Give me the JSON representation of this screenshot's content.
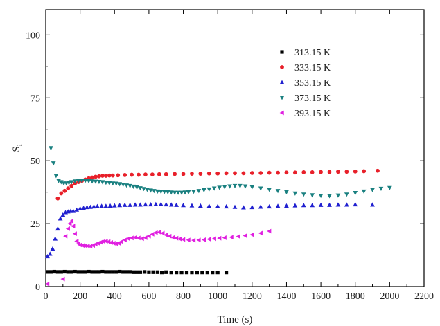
{
  "chart_data": {
    "type": "scatter",
    "title": "",
    "xlabel": "Time (s)",
    "ylabel": "S",
    "ylabel_subscript": "i",
    "xlim": [
      0,
      2200
    ],
    "ylim": [
      0,
      110
    ],
    "xticks": [
      0,
      200,
      400,
      600,
      800,
      1000,
      1200,
      1400,
      1600,
      1800,
      2000,
      2200
    ],
    "yticks": [
      0,
      25,
      50,
      75,
      100
    ],
    "grid": false,
    "legend_position": "top-right",
    "series": [
      {
        "name": "313.15 K",
        "marker": "square",
        "color": "#000000",
        "x": [
          10,
          30,
          50,
          70,
          90,
          110,
          130,
          150,
          170,
          190,
          210,
          230,
          250,
          270,
          290,
          310,
          330,
          350,
          370,
          390,
          410,
          430,
          450,
          470,
          490,
          510,
          530,
          550,
          575,
          600,
          625,
          650,
          675,
          700,
          730,
          760,
          790,
          820,
          850,
          880,
          910,
          940,
          970,
          1000,
          1050
        ],
        "y": [
          5.8,
          5.8,
          5.9,
          5.8,
          5.8,
          5.9,
          5.8,
          5.8,
          5.9,
          5.8,
          5.8,
          5.8,
          5.9,
          5.8,
          5.8,
          5.8,
          5.9,
          5.8,
          5.8,
          5.8,
          5.8,
          5.9,
          5.8,
          5.8,
          5.8,
          5.7,
          5.7,
          5.7,
          5.8,
          5.7,
          5.7,
          5.7,
          5.6,
          5.7,
          5.6,
          5.6,
          5.6,
          5.6,
          5.6,
          5.6,
          5.6,
          5.6,
          5.6,
          5.6,
          5.6
        ]
      },
      {
        "name": "333.15 K",
        "marker": "circle",
        "color": "#e8202a",
        "x": [
          70,
          90,
          110,
          130,
          150,
          170,
          190,
          210,
          230,
          250,
          270,
          290,
          310,
          330,
          350,
          370,
          390,
          420,
          460,
          500,
          540,
          580,
          620,
          660,
          700,
          750,
          800,
          850,
          900,
          950,
          1000,
          1050,
          1100,
          1150,
          1200,
          1250,
          1300,
          1350,
          1400,
          1450,
          1500,
          1550,
          1600,
          1650,
          1700,
          1750,
          1800,
          1850,
          1930
        ],
        "y": [
          35,
          37,
          38,
          39,
          40,
          41,
          41.5,
          42,
          42.5,
          43,
          43.3,
          43.6,
          43.8,
          44,
          44,
          44.1,
          44.1,
          44.2,
          44.3,
          44.4,
          44.4,
          44.5,
          44.5,
          44.6,
          44.6,
          44.7,
          44.7,
          44.8,
          44.8,
          44.9,
          44.9,
          45,
          45,
          45,
          45.1,
          45.1,
          45.2,
          45.2,
          45.3,
          45.3,
          45.4,
          45.4,
          45.5,
          45.5,
          45.6,
          45.6,
          45.7,
          45.8,
          46
        ]
      },
      {
        "name": "353.15 K",
        "marker": "triangle-up",
        "color": "#2020d0",
        "x": [
          10,
          25,
          40,
          55,
          70,
          85,
          100,
          115,
          130,
          145,
          160,
          180,
          200,
          220,
          240,
          260,
          280,
          300,
          325,
          350,
          375,
          400,
          430,
          460,
          490,
          520,
          550,
          580,
          610,
          640,
          670,
          700,
          730,
          760,
          800,
          850,
          900,
          950,
          1000,
          1050,
          1100,
          1150,
          1200,
          1250,
          1300,
          1350,
          1400,
          1450,
          1500,
          1550,
          1600,
          1650,
          1700,
          1750,
          1800,
          1900
        ],
        "y": [
          12,
          13,
          15,
          19,
          23,
          27,
          28.5,
          29.5,
          29.8,
          30,
          30,
          30.5,
          31,
          31.2,
          31.5,
          31.6,
          31.8,
          31.9,
          32,
          32,
          32.1,
          32.2,
          32.3,
          32.4,
          32.4,
          32.5,
          32.5,
          32.6,
          32.6,
          32.7,
          32.7,
          32.6,
          32.5,
          32.4,
          32.3,
          32.2,
          32.1,
          32,
          31.9,
          31.8,
          31.6,
          31.4,
          31.5,
          31.7,
          31.8,
          32,
          32.1,
          32.2,
          32.3,
          32.3,
          32.4,
          32.4,
          32.5,
          32.5,
          32.6,
          32.5
        ]
      },
      {
        "name": "373.15 K",
        "marker": "triangle-down",
        "color": "#1a8080",
        "x": [
          30,
          45,
          60,
          75,
          90,
          105,
          120,
          135,
          150,
          170,
          190,
          210,
          230,
          250,
          270,
          290,
          310,
          330,
          350,
          370,
          390,
          410,
          430,
          450,
          470,
          490,
          510,
          530,
          550,
          570,
          590,
          610,
          630,
          650,
          670,
          690,
          710,
          730,
          750,
          770,
          790,
          810,
          830,
          860,
          890,
          920,
          950,
          980,
          1010,
          1040,
          1070,
          1100,
          1130,
          1160,
          1200,
          1250,
          1300,
          1350,
          1400,
          1450,
          1500,
          1550,
          1600,
          1650,
          1700,
          1750,
          1800,
          1850,
          1900,
          1950,
          2000
        ],
        "y": [
          55,
          49,
          44,
          42,
          41.5,
          41,
          41,
          41.2,
          41.5,
          41.8,
          42,
          42,
          42,
          41.9,
          41.8,
          41.7,
          41.6,
          41.5,
          41.3,
          41.1,
          41,
          40.9,
          40.7,
          40.5,
          40.2,
          40,
          39.7,
          39.4,
          39.1,
          38.8,
          38.5,
          38.2,
          38,
          37.8,
          37.7,
          37.6,
          37.5,
          37.4,
          37.3,
          37.3,
          37.3,
          37.4,
          37.5,
          37.7,
          38,
          38.3,
          38.6,
          39,
          39.3,
          39.6,
          39.8,
          40,
          40,
          39.8,
          39.5,
          39,
          38.5,
          38,
          37.5,
          37,
          36.6,
          36.3,
          36.1,
          36,
          36.2,
          36.6,
          37.2,
          37.8,
          38.4,
          38.9,
          39.2
        ]
      },
      {
        "name": "393.15 K",
        "marker": "triangle-left",
        "color": "#e020e0",
        "x": [
          10,
          100,
          115,
          130,
          140,
          150,
          160,
          170,
          180,
          190,
          200,
          215,
          230,
          245,
          260,
          275,
          290,
          305,
          320,
          335,
          350,
          365,
          380,
          395,
          410,
          425,
          440,
          460,
          480,
          500,
          520,
          540,
          560,
          580,
          600,
          620,
          640,
          660,
          680,
          700,
          720,
          740,
          760,
          780,
          800,
          830,
          860,
          890,
          920,
          950,
          980,
          1010,
          1040,
          1080,
          1120,
          1160,
          1200,
          1250,
          1300
        ],
        "y": [
          1,
          3,
          20,
          23,
          25,
          26,
          24,
          21,
          18,
          17,
          16.5,
          16.3,
          16.2,
          16.1,
          16,
          16.3,
          16.8,
          17.2,
          17.6,
          17.9,
          18,
          17.8,
          17.5,
          17.2,
          17,
          17.2,
          17.8,
          18.5,
          19,
          19.3,
          19.5,
          19.3,
          19,
          19.4,
          20,
          20.8,
          21.4,
          21.6,
          21.2,
          20.5,
          20,
          19.5,
          19.2,
          18.9,
          18.7,
          18.5,
          18.4,
          18.5,
          18.6,
          18.8,
          19,
          19.2,
          19.4,
          19.6,
          19.9,
          20.2,
          20.6,
          21.2,
          22
        ]
      }
    ]
  }
}
